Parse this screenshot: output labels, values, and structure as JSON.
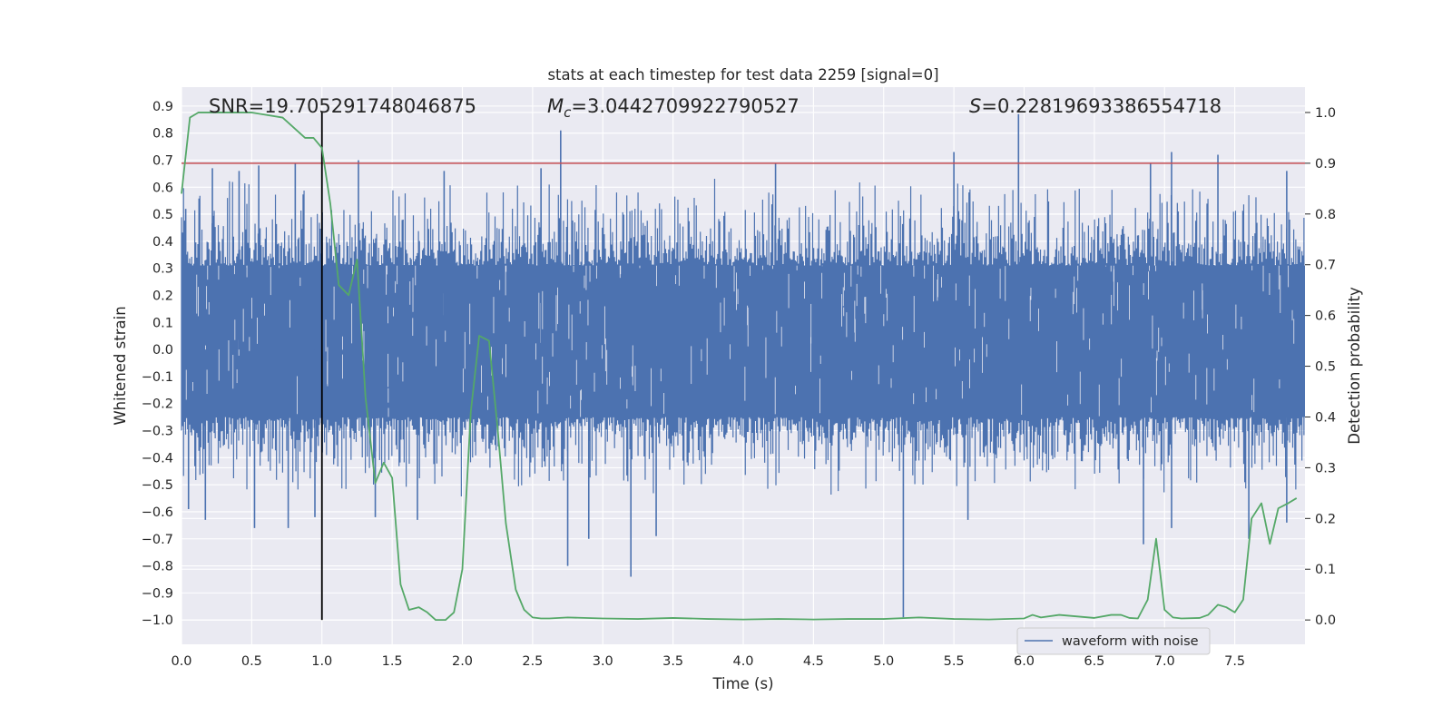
{
  "chart_data": {
    "type": "line",
    "title": "stats at each timestep for test data 2259 [signal=0]",
    "xlabel": "Time (s)",
    "ylabel": "Whitened strain",
    "y2label": "Detection probability",
    "xlim": [
      0.0,
      8.0
    ],
    "ylim": [
      -1.09,
      0.97
    ],
    "y2lim": [
      -0.048,
      1.05
    ],
    "xticks": [
      "0.0",
      "0.5",
      "1.0",
      "1.5",
      "2.0",
      "2.5",
      "3.0",
      "3.5",
      "4.0",
      "4.5",
      "5.0",
      "5.5",
      "6.0",
      "6.5",
      "7.0",
      "7.5"
    ],
    "yticks": [
      "0.9",
      "0.8",
      "0.7",
      "0.6",
      "0.5",
      "0.4",
      "0.3",
      "0.2",
      "0.1",
      "0.0",
      "−0.1",
      "−0.2",
      "−0.3",
      "−0.4",
      "−0.5",
      "−0.6",
      "−0.7",
      "−0.8",
      "−0.9",
      "−1.0"
    ],
    "y2ticks": [
      "1.0",
      "0.9",
      "0.8",
      "0.7",
      "0.6",
      "0.5",
      "0.4",
      "0.3",
      "0.2",
      "0.1",
      "0.0"
    ],
    "grid": true,
    "legend": {
      "placement": "bottom-right",
      "entries": [
        {
          "label": "waveform with noise",
          "color": "#4c72b0"
        }
      ]
    },
    "annotations": {
      "snr_text": "SNR=19.705291748046875",
      "mc_symbol": "M",
      "mc_sub": "c",
      "mc_value": "=3.0442709922790527",
      "s_symbol": "S",
      "s_value": "=0.22819693386554718"
    },
    "threshold_line": {
      "axis": "right",
      "y": 0.9,
      "color": "#c44e52"
    },
    "vertical_marker": {
      "x": 1.0,
      "y_from": -1.0,
      "y_to": 0.88,
      "color": "#000000"
    },
    "waveform": {
      "name": "waveform with noise",
      "color": "#4c72b0",
      "band_min": -0.25,
      "band_max": 0.31,
      "peaks": [
        {
          "x": 0.03,
          "y": 0.52
        },
        {
          "x": 0.22,
          "y": 0.67
        },
        {
          "x": 0.41,
          "y": 0.66
        },
        {
          "x": 0.55,
          "y": 0.68
        },
        {
          "x": 0.81,
          "y": 0.69
        },
        {
          "x": 1.0,
          "y": 0.71
        },
        {
          "x": 1.26,
          "y": 0.7
        },
        {
          "x": 1.87,
          "y": 0.66
        },
        {
          "x": 2.56,
          "y": 0.67
        },
        {
          "x": 2.7,
          "y": 0.81
        },
        {
          "x": 4.23,
          "y": 0.69
        },
        {
          "x": 5.5,
          "y": 0.73
        },
        {
          "x": 5.96,
          "y": 0.87
        },
        {
          "x": 6.9,
          "y": 0.69
        },
        {
          "x": 7.05,
          "y": 0.73
        },
        {
          "x": 7.38,
          "y": 0.72
        },
        {
          "x": 7.87,
          "y": 0.66
        }
      ],
      "troughs": [
        {
          "x": 0.05,
          "y": -0.59
        },
        {
          "x": 0.17,
          "y": -0.63
        },
        {
          "x": 0.52,
          "y": -0.66
        },
        {
          "x": 0.76,
          "y": -0.66
        },
        {
          "x": 0.95,
          "y": -0.62
        },
        {
          "x": 1.38,
          "y": -0.62
        },
        {
          "x": 1.68,
          "y": -0.63
        },
        {
          "x": 2.75,
          "y": -0.8
        },
        {
          "x": 2.9,
          "y": -0.7
        },
        {
          "x": 3.2,
          "y": -0.84
        },
        {
          "x": 3.38,
          "y": -0.69
        },
        {
          "x": 5.14,
          "y": -0.99
        },
        {
          "x": 5.6,
          "y": -0.63
        },
        {
          "x": 6.85,
          "y": -0.72
        },
        {
          "x": 7.05,
          "y": -0.66
        },
        {
          "x": 7.6,
          "y": -0.7
        },
        {
          "x": 7.87,
          "y": -0.64
        }
      ]
    },
    "probability": {
      "name": "Detection probability",
      "color": "#55a868",
      "x": [
        0.0,
        0.06,
        0.12,
        0.25,
        0.5,
        0.72,
        0.88,
        0.94,
        1.0,
        1.06,
        1.12,
        1.19,
        1.25,
        1.31,
        1.38,
        1.44,
        1.5,
        1.56,
        1.62,
        1.69,
        1.75,
        1.81,
        1.88,
        1.94,
        2.0,
        2.06,
        2.12,
        2.19,
        2.25,
        2.31,
        2.38,
        2.44,
        2.5,
        2.56,
        2.62,
        2.75,
        3.0,
        3.25,
        3.5,
        3.75,
        4.0,
        4.25,
        4.5,
        4.75,
        5.0,
        5.25,
        5.5,
        5.75,
        6.0,
        6.06,
        6.12,
        6.25,
        6.5,
        6.62,
        6.69,
        6.75,
        6.81,
        6.88,
        6.94,
        7.0,
        7.06,
        7.12,
        7.25,
        7.31,
        7.38,
        7.44,
        7.5,
        7.56,
        7.62,
        7.69,
        7.75,
        7.81,
        7.88,
        7.94
      ],
      "y": [
        0.84,
        0.99,
        1.0,
        1.0,
        1.0,
        0.99,
        0.95,
        0.95,
        0.93,
        0.82,
        0.66,
        0.64,
        0.71,
        0.44,
        0.27,
        0.31,
        0.28,
        0.07,
        0.02,
        0.025,
        0.015,
        0.0,
        0.0,
        0.015,
        0.1,
        0.41,
        0.56,
        0.55,
        0.38,
        0.19,
        0.06,
        0.02,
        0.005,
        0.003,
        0.003,
        0.005,
        0.003,
        0.002,
        0.004,
        0.002,
        0.001,
        0.002,
        0.001,
        0.002,
        0.002,
        0.005,
        0.002,
        0.001,
        0.003,
        0.01,
        0.005,
        0.01,
        0.004,
        0.01,
        0.01,
        0.004,
        0.003,
        0.04,
        0.16,
        0.02,
        0.005,
        0.003,
        0.004,
        0.01,
        0.03,
        0.025,
        0.015,
        0.04,
        0.2,
        0.23,
        0.15,
        0.22,
        0.23,
        0.24
      ]
    }
  }
}
